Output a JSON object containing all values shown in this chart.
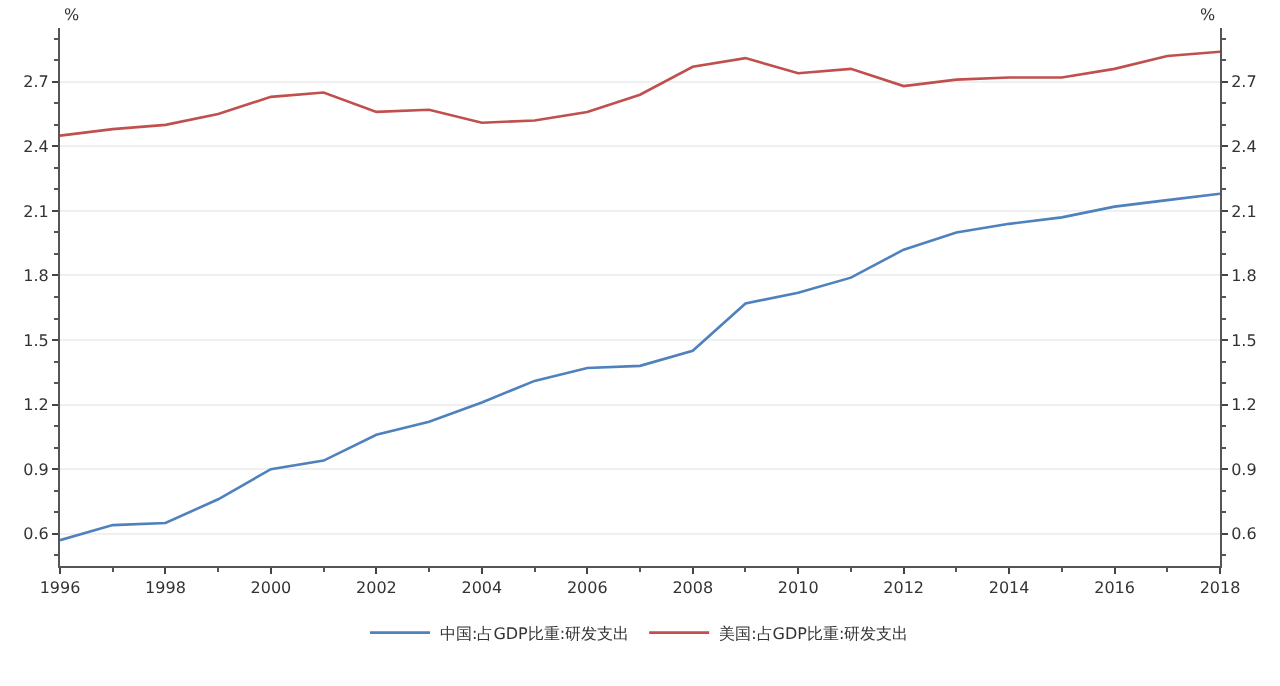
{
  "chart_data": {
    "type": "line",
    "ylabel": "%",
    "y2label": "%",
    "x": [
      1996,
      1997,
      1998,
      1999,
      2000,
      2001,
      2002,
      2003,
      2004,
      2005,
      2006,
      2007,
      2008,
      2009,
      2010,
      2011,
      2012,
      2013,
      2014,
      2015,
      2016,
      2017,
      2018
    ],
    "series": [
      {
        "name": "中国:占GDP比重:研发支出",
        "color": "#4f81bd",
        "values": [
          0.57,
          0.64,
          0.65,
          0.76,
          0.9,
          0.94,
          1.06,
          1.12,
          1.21,
          1.31,
          1.37,
          1.38,
          1.45,
          1.67,
          1.72,
          1.79,
          1.92,
          2.0,
          2.04,
          2.07,
          2.12,
          2.15,
          2.18
        ]
      },
      {
        "name": "美国:占GDP比重:研发支出",
        "color": "#c0504d",
        "values": [
          2.45,
          2.48,
          2.5,
          2.55,
          2.63,
          2.65,
          2.56,
          2.57,
          2.51,
          2.52,
          2.56,
          2.64,
          2.77,
          2.81,
          2.74,
          2.76,
          2.68,
          2.71,
          2.72,
          2.72,
          2.76,
          2.82,
          2.84
        ]
      }
    ],
    "xlim": [
      1996,
      2018
    ],
    "xticks": [
      1996,
      1998,
      2000,
      2002,
      2004,
      2006,
      2008,
      2010,
      2012,
      2014,
      2016,
      2018
    ],
    "ylim": [
      0.45,
      2.95
    ],
    "yticks": [
      {
        "value": 0.6,
        "label": "0.6"
      },
      {
        "value": 0.9,
        "label": "0.9"
      },
      {
        "value": 1.2,
        "label": "1.2"
      },
      {
        "value": 1.5,
        "label": "1.5"
      },
      {
        "value": 1.8,
        "label": "1.8"
      },
      {
        "value": 2.1,
        "label": "2.1"
      },
      {
        "value": 2.4,
        "label": "2.4"
      },
      {
        "value": 2.7,
        "label": "2.7"
      }
    ],
    "y2lim": [
      0.45,
      2.95
    ],
    "y2ticks": [
      {
        "value": 0.6,
        "label": "0.6"
      },
      {
        "value": 0.9,
        "label": "0.9"
      },
      {
        "value": 1.2,
        "label": "1.2"
      },
      {
        "value": 1.5,
        "label": "1.5"
      },
      {
        "value": 1.8,
        "label": "1.8"
      },
      {
        "value": 2.1,
        "label": "2.1"
      },
      {
        "value": 2.4,
        "label": "2.4"
      },
      {
        "value": 2.7,
        "label": "2.7"
      }
    ],
    "grid": "y",
    "legend": "bottom",
    "marker": "none",
    "line_style": "solid"
  }
}
